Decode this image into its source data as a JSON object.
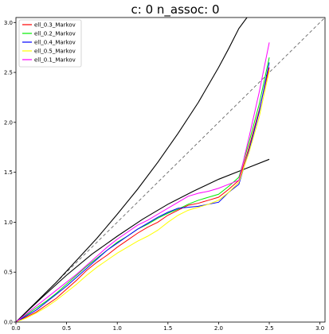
{
  "chart_data": {
    "type": "line",
    "title": "c: 0     n_assoc: 0",
    "xlabel": "",
    "ylabel": "",
    "xlim": [
      0,
      3.05
    ],
    "ylim": [
      0,
      3.05
    ],
    "grid": false,
    "legend_placement": "top-left",
    "x_ticks": [
      "0.0",
      "0.5",
      "1.0",
      "1.5",
      "2.0",
      "2.5",
      "3.0"
    ],
    "y_ticks": [
      "0.0",
      "0.5",
      "1.0",
      "1.5",
      "2.0",
      "2.5",
      "3.0"
    ],
    "series": [
      {
        "name": "ell_0.3_Markov",
        "color": "#ff0000",
        "x": [
          0,
          0.1,
          0.2,
          0.3,
          0.4,
          0.5,
          0.6,
          0.7,
          0.8,
          0.9,
          1.0,
          1.1,
          1.2,
          1.3,
          1.4,
          1.5,
          1.6,
          1.7,
          1.8,
          1.9,
          2.0,
          2.1,
          2.2,
          2.3,
          2.4,
          2.5
        ],
        "y": [
          0,
          0.05,
          0.1,
          0.17,
          0.24,
          0.33,
          0.42,
          0.52,
          0.6,
          0.67,
          0.75,
          0.82,
          0.89,
          0.95,
          1.0,
          1.07,
          1.12,
          1.17,
          1.19,
          1.22,
          1.25,
          1.33,
          1.42,
          1.75,
          2.12,
          2.55
        ]
      },
      {
        "name": "ell_0.2_Markov",
        "color": "#00ee00",
        "x": [
          0,
          0.1,
          0.2,
          0.3,
          0.4,
          0.5,
          0.6,
          0.7,
          0.8,
          0.9,
          1.0,
          1.1,
          1.2,
          1.3,
          1.4,
          1.5,
          1.6,
          1.7,
          1.8,
          1.9,
          2.0,
          2.1,
          2.2,
          2.3,
          2.4,
          2.5
        ],
        "y": [
          0,
          0.07,
          0.14,
          0.21,
          0.29,
          0.38,
          0.47,
          0.56,
          0.64,
          0.72,
          0.8,
          0.86,
          0.93,
          0.98,
          1.04,
          1.09,
          1.13,
          1.18,
          1.22,
          1.25,
          1.28,
          1.36,
          1.45,
          1.8,
          2.18,
          2.65
        ]
      },
      {
        "name": "ell_0.4_Markov",
        "color": "#0000ff",
        "x": [
          0,
          0.1,
          0.2,
          0.3,
          0.4,
          0.5,
          0.6,
          0.7,
          0.8,
          0.9,
          1.0,
          1.1,
          1.2,
          1.3,
          1.4,
          1.5,
          1.6,
          1.7,
          1.8,
          1.9,
          2.0,
          2.1,
          2.2,
          2.3,
          2.4,
          2.5
        ],
        "y": [
          0,
          0.06,
          0.12,
          0.2,
          0.28,
          0.36,
          0.45,
          0.54,
          0.63,
          0.72,
          0.79,
          0.86,
          0.93,
          0.99,
          1.05,
          1.1,
          1.14,
          1.15,
          1.16,
          1.18,
          1.2,
          1.3,
          1.38,
          1.72,
          2.1,
          2.6
        ]
      },
      {
        "name": "ell_0.5_Markov",
        "color": "#ffff00",
        "x": [
          0,
          0.1,
          0.2,
          0.3,
          0.4,
          0.5,
          0.6,
          0.7,
          0.8,
          0.9,
          1.0,
          1.1,
          1.2,
          1.3,
          1.4,
          1.5,
          1.6,
          1.7,
          1.8,
          1.9,
          2.0,
          2.1,
          2.2,
          2.3,
          2.4,
          2.5
        ],
        "y": [
          0,
          0.04,
          0.09,
          0.15,
          0.22,
          0.3,
          0.38,
          0.47,
          0.55,
          0.62,
          0.69,
          0.75,
          0.81,
          0.86,
          0.92,
          1.0,
          1.07,
          1.12,
          1.15,
          1.18,
          1.22,
          1.3,
          1.4,
          1.7,
          2.05,
          2.52
        ]
      },
      {
        "name": "ell_0.1_Markov",
        "color": "#ff00ff",
        "x": [
          0,
          0.1,
          0.2,
          0.3,
          0.4,
          0.5,
          0.6,
          0.7,
          0.8,
          0.9,
          1.0,
          1.1,
          1.2,
          1.3,
          1.4,
          1.5,
          1.6,
          1.7,
          1.8,
          1.9,
          2.0,
          2.1,
          2.2,
          2.3,
          2.4,
          2.5
        ],
        "y": [
          0,
          0.08,
          0.16,
          0.24,
          0.32,
          0.4,
          0.48,
          0.57,
          0.66,
          0.75,
          0.83,
          0.9,
          0.97,
          1.02,
          1.08,
          1.14,
          1.2,
          1.26,
          1.29,
          1.31,
          1.34,
          1.38,
          1.42,
          1.85,
          2.3,
          2.8
        ]
      }
    ],
    "reference_curves": [
      {
        "style": "dashed",
        "color": "#555555",
        "x": [
          0,
          3.05
        ],
        "y": [
          0,
          3.05
        ]
      },
      {
        "style": "solid",
        "color": "#000000",
        "x": [
          0,
          0.2,
          0.4,
          0.6,
          0.8,
          1.0,
          1.2,
          1.4,
          1.6,
          1.8,
          2.0,
          2.1,
          2.2,
          2.28
        ],
        "y": [
          0,
          0.2,
          0.4,
          0.62,
          0.84,
          1.08,
          1.33,
          1.6,
          1.89,
          2.2,
          2.55,
          2.74,
          2.94,
          3.05
        ]
      },
      {
        "style": "solid",
        "color": "#000000",
        "x": [
          0,
          0.25,
          0.5,
          0.75,
          1.0,
          1.25,
          1.5,
          1.75,
          2.0,
          2.25,
          2.5
        ],
        "y": [
          0,
          0.24,
          0.47,
          0.68,
          0.86,
          1.03,
          1.18,
          1.31,
          1.43,
          1.53,
          1.63
        ]
      }
    ]
  }
}
